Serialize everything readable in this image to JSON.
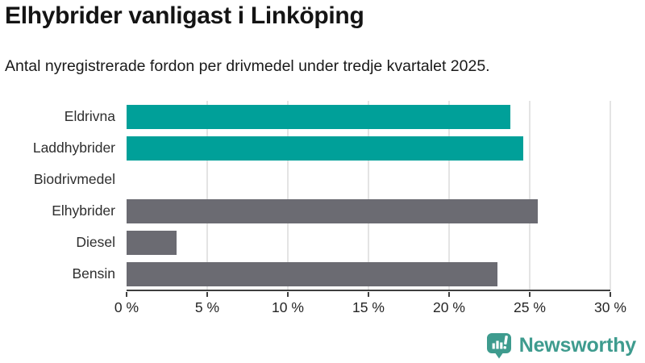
{
  "header": {
    "title": "Elhybrider vanligast i Linköping",
    "subtitle": "Antal nyregistrerade fordon per drivmedel under tredje kvartalet 2025."
  },
  "chart_data": {
    "type": "bar",
    "orientation": "horizontal",
    "title": "Elhybrider vanligast i Linköping",
    "subtitle": "Antal nyregistrerade fordon per drivmedel under tredje kvartalet 2025.",
    "categories": [
      "Eldrivna",
      "Laddhybrider",
      "Biodrivmedel",
      "Elhybrider",
      "Diesel",
      "Bensin"
    ],
    "values": [
      23.8,
      24.6,
      0,
      25.5,
      3.1,
      23.0
    ],
    "unit": "%",
    "bar_colors": [
      "#00a099",
      "#00a099",
      "#6b6b72",
      "#6b6b72",
      "#6b6b72",
      "#6b6b72"
    ],
    "xlim": [
      0,
      30
    ],
    "x_ticks": [
      0,
      5,
      10,
      15,
      20,
      25,
      30
    ],
    "x_tick_labels": [
      "0 %",
      "5 %",
      "10 %",
      "15 %",
      "20 %",
      "25 %",
      "30 %"
    ],
    "grid": "vertical",
    "legend": "none",
    "xlabel": "",
    "ylabel": ""
  },
  "branding": {
    "logo_text": "Newsworthy",
    "logo_icon": "bar-chart-speech-bubble-icon",
    "logo_color": "#3e9b8e"
  },
  "colors": {
    "highlight_teal": "#00a099",
    "neutral_gray": "#6b6b72",
    "gridline": "#e4e4e4",
    "axis": "#3f3f3f",
    "background": "#ffffff"
  }
}
